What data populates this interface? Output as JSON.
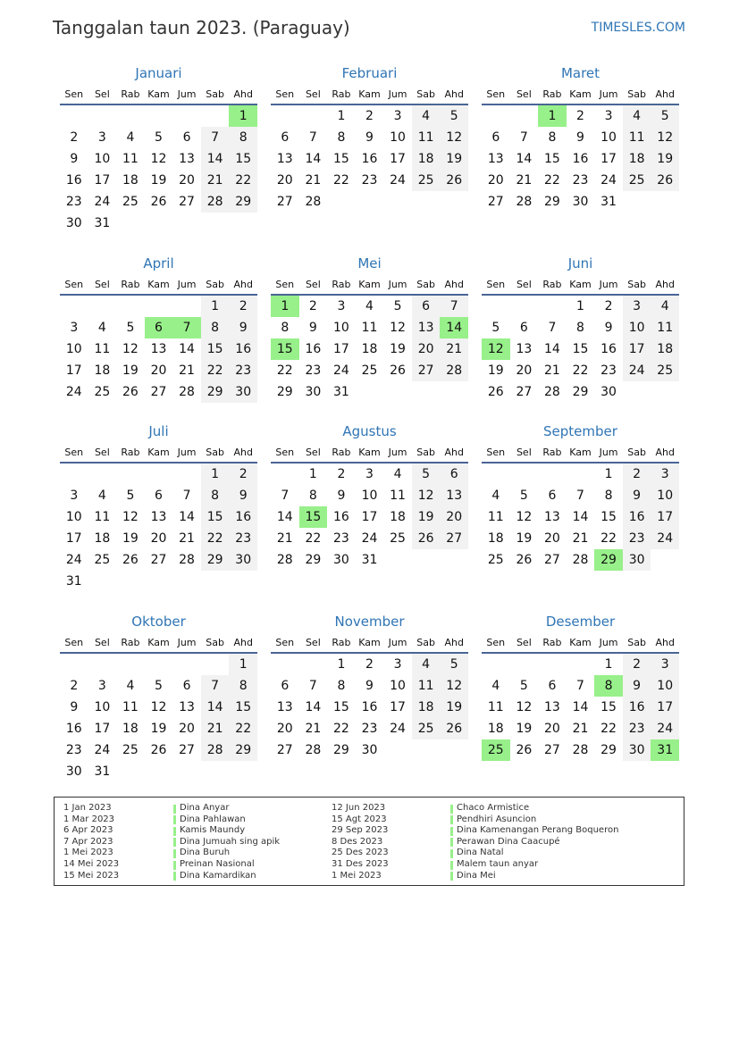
{
  "header": {
    "title": "Tanggalan taun 2023. (Paraguay)",
    "brand": "TIMESLES.COM"
  },
  "weekdays": [
    "Sen",
    "Sel",
    "Rab",
    "Kam",
    "Jum",
    "Sab",
    "Ahd"
  ],
  "colors": {
    "accent": "#2f75b5",
    "holiday": "#98f08a",
    "weekend": "#f2f2f2"
  },
  "months": [
    {
      "name": "Januari",
      "first_weekday": "Ahd",
      "days": 31,
      "holidays": [
        1
      ]
    },
    {
      "name": "Februari",
      "first_weekday": "Rab",
      "days": 28,
      "holidays": []
    },
    {
      "name": "Maret",
      "first_weekday": "Rab",
      "days": 31,
      "holidays": [
        1
      ]
    },
    {
      "name": "April",
      "first_weekday": "Sab",
      "days": 30,
      "holidays": [
        6,
        7
      ]
    },
    {
      "name": "Mei",
      "first_weekday": "Sen",
      "days": 31,
      "holidays": [
        1,
        14,
        15
      ]
    },
    {
      "name": "Juni",
      "first_weekday": "Kam",
      "days": 30,
      "holidays": [
        12
      ]
    },
    {
      "name": "Juli",
      "first_weekday": "Sab",
      "days": 31,
      "holidays": []
    },
    {
      "name": "Agustus",
      "first_weekday": "Sel",
      "days": 31,
      "holidays": [
        15
      ]
    },
    {
      "name": "September",
      "first_weekday": "Jum",
      "days": 30,
      "holidays": [
        29
      ]
    },
    {
      "name": "Oktober",
      "first_weekday": "Ahd",
      "days": 31,
      "holidays": []
    },
    {
      "name": "November",
      "first_weekday": "Rab",
      "days": 30,
      "holidays": []
    },
    {
      "name": "Desember",
      "first_weekday": "Jum",
      "days": 31,
      "holidays": [
        8,
        25,
        31
      ]
    }
  ],
  "holidays": [
    {
      "date": "1 Jan 2023",
      "name": "Dina Anyar"
    },
    {
      "date": "1 Mar 2023",
      "name": "Dina Pahlawan"
    },
    {
      "date": "6 Apr 2023",
      "name": "Kamis Maundy"
    },
    {
      "date": "7 Apr 2023",
      "name": "Dina Jumuah sing apik"
    },
    {
      "date": "1 Mei 2023",
      "name": "Dina Buruh"
    },
    {
      "date": "14 Mei 2023",
      "name": "Preinan Nasional"
    },
    {
      "date": "15 Mei 2023",
      "name": "Dina Kamardikan"
    },
    {
      "date": "12 Jun 2023",
      "name": "Chaco Armistice"
    },
    {
      "date": "15 Agt 2023",
      "name": "Pendhiri Asuncion"
    },
    {
      "date": "29 Sep 2023",
      "name": "Dina Kamenangan Perang Boqueron"
    },
    {
      "date": "8 Des 2023",
      "name": "Perawan Dina Caacupé"
    },
    {
      "date": "25 Des 2023",
      "name": "Dina Natal"
    },
    {
      "date": "31 Des 2023",
      "name": "Malem taun anyar"
    },
    {
      "date": "1 Mei 2023",
      "name": "Dina Mei"
    }
  ]
}
